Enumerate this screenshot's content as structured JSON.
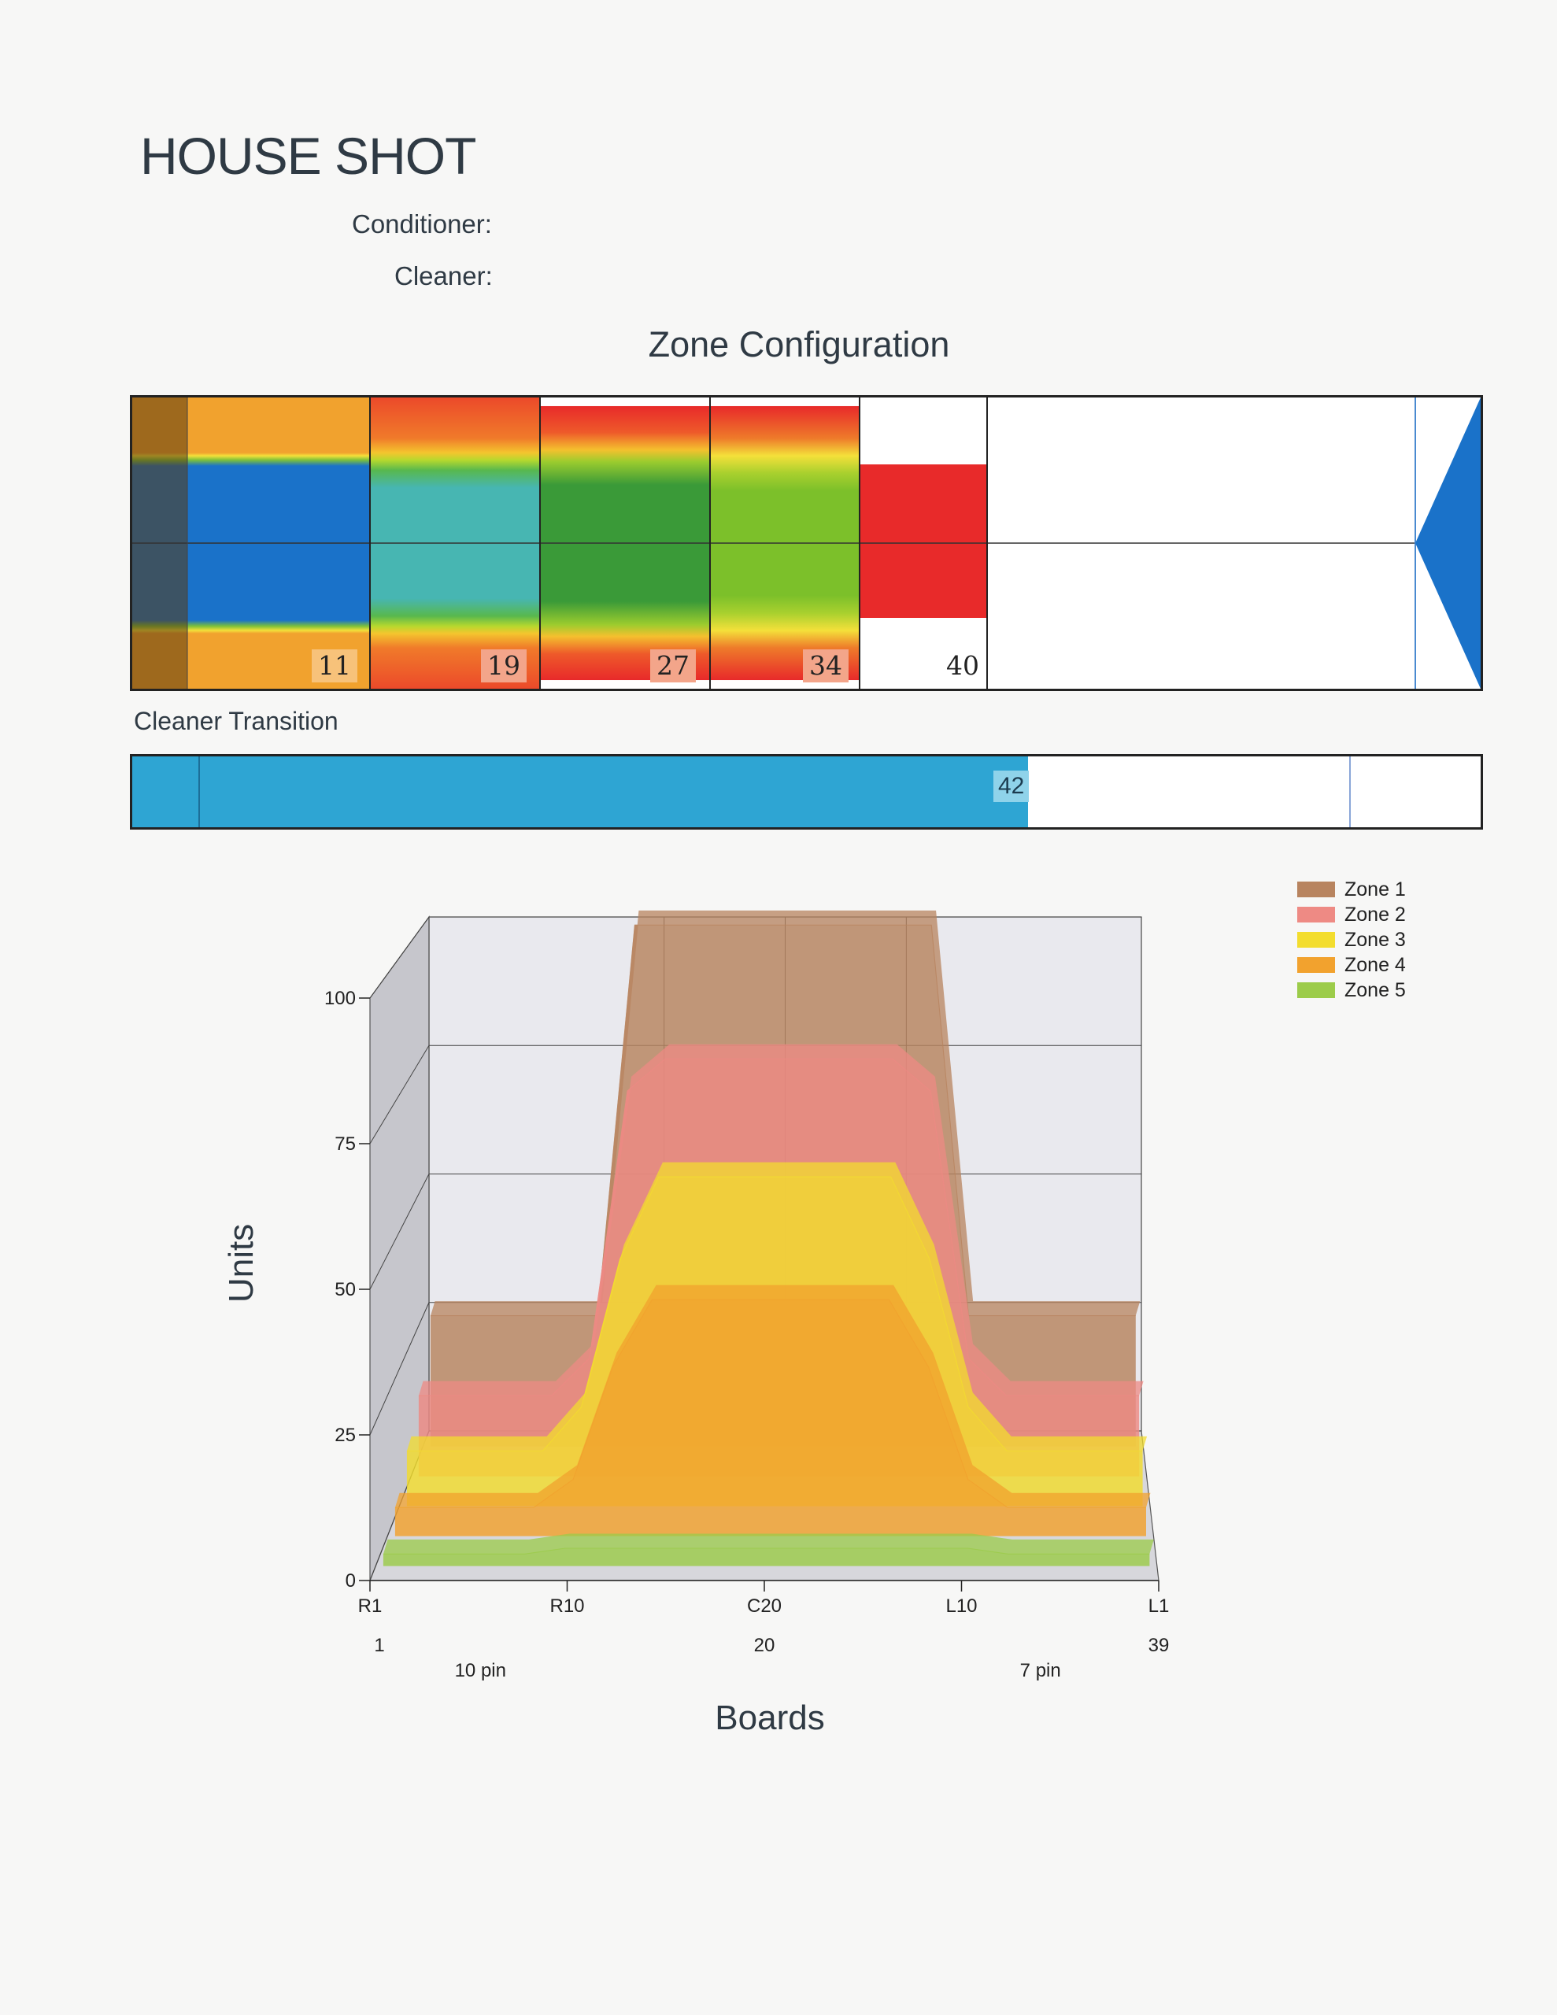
{
  "header": {
    "title": "HOUSE SHOT",
    "conditioner_label": "Conditioner:",
    "cleaner_label": "Cleaner:"
  },
  "zone_configuration": {
    "title": "Zone Configuration",
    "markers": [
      "11",
      "19",
      "27",
      "34",
      "40"
    ],
    "zone_colors": [
      "#8a5a2e",
      "#1a72c9",
      "#47b6b2",
      "#3a9a38",
      "#7cc02a",
      "#e82a2a"
    ]
  },
  "cleaner_transition": {
    "label": "Cleaner Transition",
    "marker": "42",
    "color": "#2ea5d3"
  },
  "chart_data": {
    "type": "area",
    "ylabel": "Units",
    "xlabel": "Boards",
    "ylim": [
      0,
      100
    ],
    "yticks": [
      "0",
      "25",
      "50",
      "75",
      "100"
    ],
    "xtick_labels": [
      "R1",
      "R10",
      "C20",
      "L10",
      "L1"
    ],
    "x_numbers": [
      "1",
      "20",
      "39"
    ],
    "x_pins": [
      "10 pin",
      "7 pin"
    ],
    "categories": [
      "1",
      "5",
      "8",
      "10",
      "12",
      "14",
      "20",
      "26",
      "28",
      "30",
      "32",
      "35",
      "39"
    ],
    "legend_position": "top-right",
    "series": [
      {
        "name": "Zone 1",
        "color": "#b8845f",
        "values": [
          25,
          25,
          25,
          25,
          100,
          100,
          100,
          100,
          100,
          25,
          25,
          25,
          25
        ]
      },
      {
        "name": "Zone 2",
        "color": "#ee8a84",
        "values": [
          15,
          15,
          15,
          22,
          72,
          78,
          78,
          78,
          72,
          22,
          15,
          15,
          15
        ]
      },
      {
        "name": "Zone 3",
        "color": "#f3dd2e",
        "values": [
          10,
          10,
          10,
          18,
          45,
          60,
          60,
          60,
          45,
          18,
          10,
          10,
          10
        ]
      },
      {
        "name": "Zone 4",
        "color": "#f2a22e",
        "values": [
          5,
          5,
          5,
          10,
          30,
          42,
          42,
          42,
          30,
          10,
          5,
          5,
          5
        ]
      },
      {
        "name": "Zone 5",
        "color": "#9ccc4a",
        "values": [
          2,
          2,
          2,
          3,
          3,
          3,
          3,
          3,
          3,
          3,
          2,
          2,
          2
        ]
      }
    ]
  }
}
